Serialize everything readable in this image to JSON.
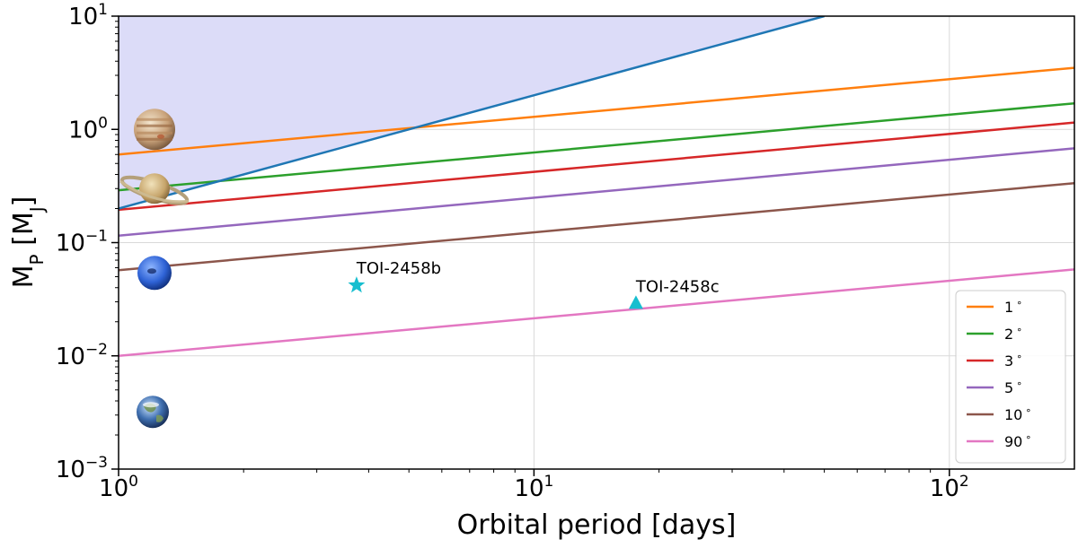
{
  "chart_data": {
    "type": "line",
    "xscale": "log",
    "yscale": "log",
    "xlim": [
      1,
      200
    ],
    "ylim": [
      0.001,
      10
    ],
    "grid": true,
    "xlabel": "Orbital period [days]",
    "ylabel": {
      "main": "M",
      "sub1": "P",
      "mid": " [M",
      "sub2": "J",
      "end": "]"
    },
    "xticks": [
      {
        "value": 1,
        "base": "10",
        "exp": "0"
      },
      {
        "value": 10,
        "base": "10",
        "exp": "1"
      },
      {
        "value": 100,
        "base": "10",
        "exp": "2"
      }
    ],
    "yticks": [
      {
        "value": 0.001,
        "base": "10",
        "exp": "−3"
      },
      {
        "value": 0.01,
        "base": "10",
        "exp": "−2"
      },
      {
        "value": 0.1,
        "base": "10",
        "exp": "−1"
      },
      {
        "value": 1,
        "base": "10",
        "exp": "0"
      },
      {
        "value": 10,
        "base": "10",
        "exp": "1"
      }
    ],
    "shaded_region": {
      "color": "#dcdcf8",
      "boundary": [
        [
          1,
          0.2
        ],
        [
          50,
          10
        ]
      ]
    },
    "boundary_line": {
      "color": "#1f77b4",
      "points": [
        [
          1,
          0.2
        ],
        [
          50,
          10
        ]
      ]
    },
    "series": [
      {
        "name": "1°",
        "label": "1",
        "color": "#ff7f0e",
        "points": [
          [
            1,
            0.6
          ],
          [
            200,
            3.5
          ]
        ]
      },
      {
        "name": "2°",
        "label": "2",
        "color": "#2ca02c",
        "points": [
          [
            1,
            0.29
          ],
          [
            200,
            1.7
          ]
        ]
      },
      {
        "name": "3°",
        "label": "3",
        "color": "#d62728",
        "points": [
          [
            1,
            0.195
          ],
          [
            200,
            1.15
          ]
        ]
      },
      {
        "name": "5°",
        "label": "5",
        "color": "#9467bd",
        "points": [
          [
            1,
            0.115
          ],
          [
            200,
            0.68
          ]
        ]
      },
      {
        "name": "10°",
        "label": "10",
        "color": "#8c564b",
        "points": [
          [
            1,
            0.057
          ],
          [
            200,
            0.335
          ]
        ]
      },
      {
        "name": "90°",
        "label": "90",
        "color": "#e377c2",
        "points": [
          [
            1,
            0.01
          ],
          [
            200,
            0.058
          ]
        ]
      }
    ],
    "legend": {
      "position": "lower-right",
      "degree_symbol": "∘"
    },
    "points": [
      {
        "name": "TOI-2458b",
        "x": 3.74,
        "y": 0.042,
        "marker": "star",
        "color": "#17becf"
      },
      {
        "name": "TOI-2458c",
        "x": 17.6,
        "y": 0.029,
        "marker": "triangle",
        "color": "#17becf"
      }
    ],
    "reference_planets": [
      {
        "name": "Jupiter",
        "y": 1.0
      },
      {
        "name": "Saturn",
        "y": 0.3
      },
      {
        "name": "Neptune",
        "y": 0.054
      },
      {
        "name": "Earth",
        "y": 0.0032
      }
    ]
  }
}
